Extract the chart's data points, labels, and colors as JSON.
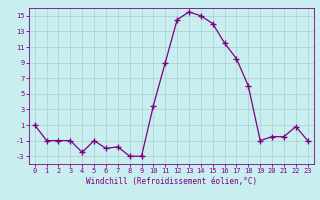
{
  "x": [
    0,
    1,
    2,
    3,
    4,
    5,
    6,
    7,
    8,
    9,
    10,
    11,
    12,
    13,
    14,
    15,
    16,
    17,
    18,
    19,
    20,
    21,
    22,
    23
  ],
  "y": [
    1,
    -1,
    -1,
    -1,
    -2.5,
    -1,
    -2,
    -1.8,
    -3,
    -3,
    3.5,
    9,
    14.5,
    15.5,
    15,
    14,
    11.5,
    9.5,
    6,
    -1,
    -0.5,
    -0.5,
    0.8,
    -1
  ],
  "line_color": "#800080",
  "marker": "+",
  "marker_size": 4,
  "bg_color": "#c8eef0",
  "grid_color": "#aacccc",
  "xlabel": "Windchill (Refroidissement éolien,°C)",
  "ylim": [
    -4,
    16
  ],
  "yticks": [
    -3,
    -1,
    1,
    3,
    5,
    7,
    9,
    11,
    13,
    15
  ],
  "xlim": [
    -0.5,
    23.5
  ],
  "xticks": [
    0,
    1,
    2,
    3,
    4,
    5,
    6,
    7,
    8,
    9,
    10,
    11,
    12,
    13,
    14,
    15,
    16,
    17,
    18,
    19,
    20,
    21,
    22,
    23
  ],
  "tick_fontsize": 5,
  "xlabel_fontsize": 5.5,
  "linewidth": 0.9
}
